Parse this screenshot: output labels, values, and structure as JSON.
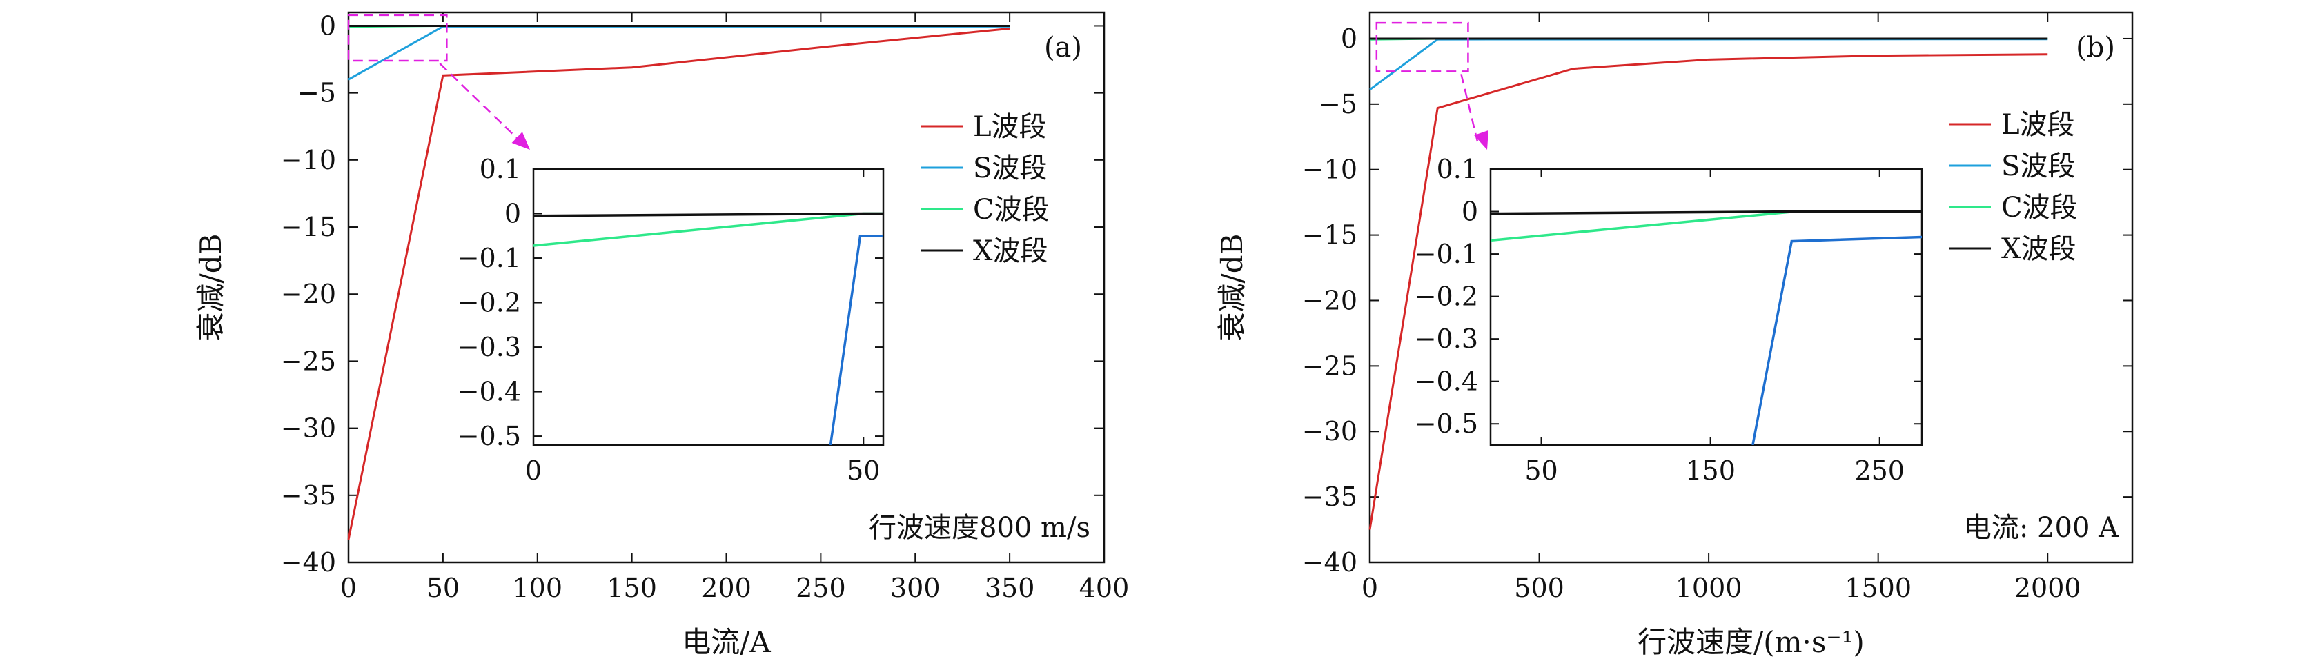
{
  "chart_data": [
    {
      "id": "a",
      "type": "line",
      "panel_label": "(a)",
      "xlabel": "电流/A",
      "ylabel": "衰减/dB",
      "xlim": [
        0,
        400
      ],
      "ylim": [
        -40,
        1
      ],
      "xticks": [
        0,
        50,
        100,
        150,
        200,
        250,
        300,
        350,
        400
      ],
      "yticks": [
        0,
        -5,
        -10,
        -15,
        -20,
        -25,
        -30,
        -35,
        -40
      ],
      "annotation": "行波速度800 m/s",
      "legend": {
        "position": "right-middle"
      },
      "series": [
        {
          "name": "L波段",
          "color": "#d62728",
          "x": [
            0,
            50,
            150,
            250,
            350
          ],
          "y": [
            -38.3,
            -3.7,
            -3.1,
            -1.6,
            -0.2
          ]
        },
        {
          "name": "S波段",
          "color": "#1ea0dc",
          "x": [
            0,
            50,
            350
          ],
          "y": [
            -4.0,
            -0.05,
            -0.05
          ]
        },
        {
          "name": "C波段",
          "color": "#2ee88a",
          "x": [
            0,
            50,
            350
          ],
          "y": [
            -0.07,
            0,
            0
          ]
        },
        {
          "name": "X波段",
          "color": "#111111",
          "x": [
            0,
            50,
            350
          ],
          "y": [
            -0.005,
            0,
            0
          ]
        }
      ],
      "zoom_box": {
        "xlim": [
          0,
          52
        ],
        "ylim": [
          -2.6,
          0.8
        ]
      },
      "inset": {
        "xlim": [
          0,
          53
        ],
        "ylim": [
          -0.52,
          0.1
        ],
        "xticks": [
          0,
          50
        ],
        "yticks": [
          0.1,
          0,
          -0.1,
          -0.2,
          -0.3,
          -0.4,
          -0.5
        ],
        "ytick_labels": [
          "0.1",
          "0",
          "−0.1",
          "−0.2",
          "−0.3",
          "−0.4",
          "−0.5"
        ],
        "series": [
          {
            "name": "S波段",
            "color": "#1e6fd0",
            "x": [
              45,
              49.5,
              53
            ],
            "y": [
              -0.52,
              -0.05,
              -0.05
            ]
          },
          {
            "name": "C波段",
            "color": "#2ee88a",
            "x": [
              0,
              50,
              53
            ],
            "y": [
              -0.072,
              0,
              0
            ]
          },
          {
            "name": "X波段",
            "color": "#111111",
            "x": [
              0,
              50,
              53
            ],
            "y": [
              -0.005,
              0,
              0
            ]
          }
        ]
      }
    },
    {
      "id": "b",
      "type": "line",
      "panel_label": "(b)",
      "xlabel": "行波速度/(m·s⁻¹)",
      "ylabel": "衰减/dB",
      "xlim": [
        0,
        2250
      ],
      "ylim": [
        -40,
        2
      ],
      "xticks": [
        0,
        500,
        1000,
        1500,
        2000
      ],
      "yticks": [
        0,
        -5,
        -10,
        -15,
        -20,
        -25,
        -30,
        -35,
        -40
      ],
      "annotation": "电流: 200 A",
      "legend": {
        "position": "right-middle"
      },
      "series": [
        {
          "name": "L波段",
          "color": "#d62728",
          "x": [
            0,
            200,
            400,
            600,
            1000,
            1500,
            2000
          ],
          "y": [
            -37.5,
            -5.3,
            -3.8,
            -2.3,
            -1.6,
            -1.3,
            -1.2
          ]
        },
        {
          "name": "S波段",
          "color": "#1ea0dc",
          "x": [
            0,
            200,
            2000
          ],
          "y": [
            -3.9,
            -0.06,
            -0.04
          ]
        },
        {
          "name": "C波段",
          "color": "#2ee88a",
          "x": [
            0,
            200,
            2000
          ],
          "y": [
            -0.07,
            0,
            0
          ]
        },
        {
          "name": "X波段",
          "color": "#111111",
          "x": [
            0,
            200,
            2000
          ],
          "y": [
            -0.005,
            0,
            0
          ]
        }
      ],
      "zoom_box": {
        "xlim": [
          20,
          290
        ],
        "ylim": [
          -2.5,
          1.2
        ]
      },
      "inset": {
        "xlim": [
          20,
          275
        ],
        "ylim": [
          -0.55,
          0.1
        ],
        "xticks": [
          50,
          150,
          250
        ],
        "yticks": [
          0.1,
          0,
          -0.1,
          -0.2,
          -0.3,
          -0.4,
          -0.5
        ],
        "ytick_labels": [
          "0.1",
          "0",
          "−0.1",
          "−0.2",
          "−0.3",
          "−0.4",
          "−0.5"
        ],
        "series": [
          {
            "name": "S波段",
            "color": "#1e6fd0",
            "x": [
              175,
              198,
              275
            ],
            "y": [
              -0.55,
              -0.07,
              -0.06
            ]
          },
          {
            "name": "C波段",
            "color": "#2ee88a",
            "x": [
              20,
              200,
              275
            ],
            "y": [
              -0.068,
              0,
              0
            ]
          },
          {
            "name": "X波段",
            "color": "#111111",
            "x": [
              20,
              200,
              275
            ],
            "y": [
              -0.005,
              0,
              0
            ]
          }
        ]
      }
    }
  ]
}
